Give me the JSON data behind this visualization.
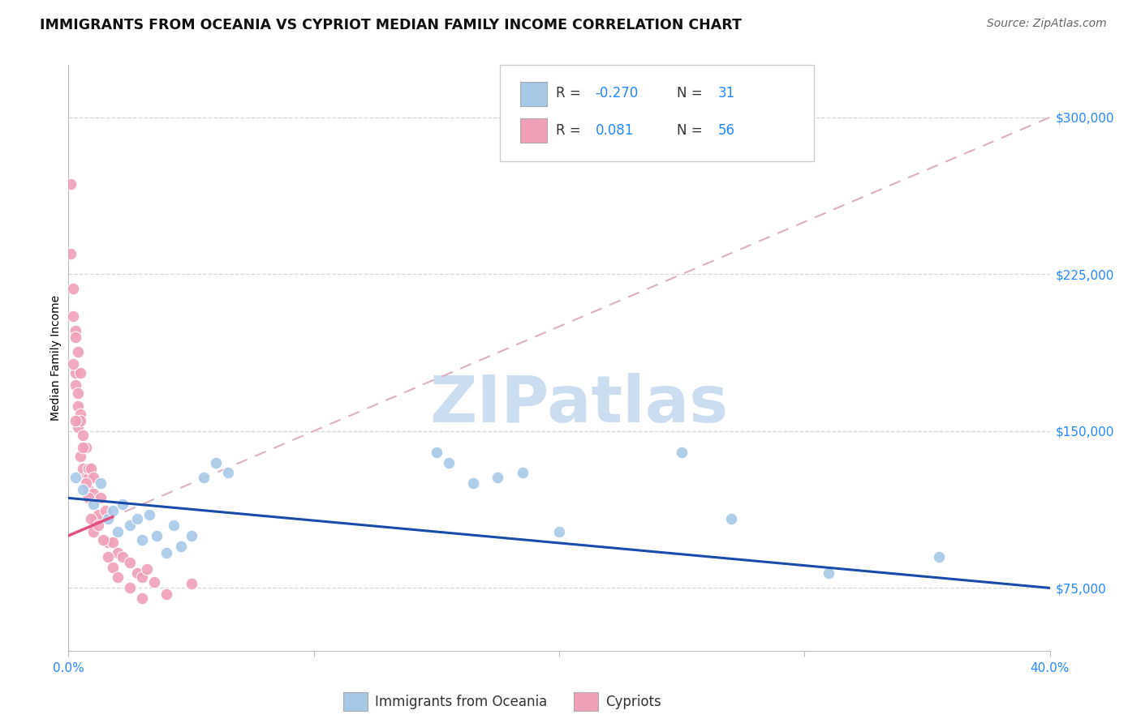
{
  "title": "IMMIGRANTS FROM OCEANIA VS CYPRIOT MEDIAN FAMILY INCOME CORRELATION CHART",
  "source": "Source: ZipAtlas.com",
  "ylabel": "Median Family Income",
  "yticks": [
    75000,
    150000,
    225000,
    300000
  ],
  "ytick_labels": [
    "$75,000",
    "$150,000",
    "$225,000",
    "$300,000"
  ],
  "xlim": [
    0.0,
    0.4
  ],
  "ylim": [
    45000,
    325000
  ],
  "legend_r_blue": "-0.270",
  "legend_n_blue": "31",
  "legend_r_pink": "0.081",
  "legend_n_pink": "56",
  "blue_scatter_x": [
    0.003,
    0.006,
    0.01,
    0.013,
    0.016,
    0.018,
    0.02,
    0.022,
    0.025,
    0.028,
    0.03,
    0.033,
    0.036,
    0.04,
    0.043,
    0.046,
    0.05,
    0.055,
    0.06,
    0.065,
    0.15,
    0.155,
    0.165,
    0.175,
    0.185,
    0.2,
    0.25,
    0.27,
    0.31,
    0.355
  ],
  "blue_scatter_y": [
    128000,
    122000,
    115000,
    125000,
    108000,
    112000,
    102000,
    115000,
    105000,
    108000,
    98000,
    110000,
    100000,
    92000,
    105000,
    95000,
    100000,
    128000,
    135000,
    130000,
    140000,
    135000,
    125000,
    128000,
    130000,
    102000,
    140000,
    108000,
    82000,
    90000
  ],
  "pink_scatter_x": [
    0.001,
    0.001,
    0.002,
    0.002,
    0.003,
    0.003,
    0.003,
    0.004,
    0.004,
    0.004,
    0.005,
    0.005,
    0.005,
    0.006,
    0.006,
    0.007,
    0.007,
    0.008,
    0.008,
    0.008,
    0.009,
    0.01,
    0.01,
    0.011,
    0.012,
    0.013,
    0.015,
    0.016,
    0.018,
    0.02,
    0.022,
    0.025,
    0.028,
    0.03,
    0.032,
    0.035,
    0.04,
    0.05,
    0.003,
    0.004,
    0.005,
    0.006,
    0.007,
    0.008,
    0.009,
    0.01,
    0.002,
    0.003,
    0.012,
    0.014,
    0.016,
    0.018,
    0.02,
    0.025,
    0.03
  ],
  "pink_scatter_y": [
    268000,
    235000,
    218000,
    205000,
    198000,
    178000,
    172000,
    188000,
    152000,
    162000,
    178000,
    158000,
    138000,
    148000,
    132000,
    128000,
    142000,
    128000,
    132000,
    122000,
    132000,
    120000,
    128000,
    108000,
    110000,
    118000,
    112000,
    97000,
    97000,
    92000,
    90000,
    87000,
    82000,
    80000,
    84000,
    78000,
    72000,
    77000,
    195000,
    168000,
    155000,
    142000,
    125000,
    118000,
    108000,
    102000,
    182000,
    155000,
    105000,
    98000,
    90000,
    85000,
    80000,
    75000,
    70000
  ],
  "blue_color": "#a8c8e8",
  "pink_color": "#f0a0b8",
  "blue_line_color": "#1a4aaa",
  "pink_solid_color": "#e05080",
  "pink_dash_color": "#ddb0c0",
  "background_color": "#ffffff",
  "watermark_color": "#ccddf0",
  "title_fontsize": 12.5,
  "axis_label_fontsize": 10,
  "tick_fontsize": 11,
  "legend_fontsize": 12,
  "source_fontsize": 10
}
